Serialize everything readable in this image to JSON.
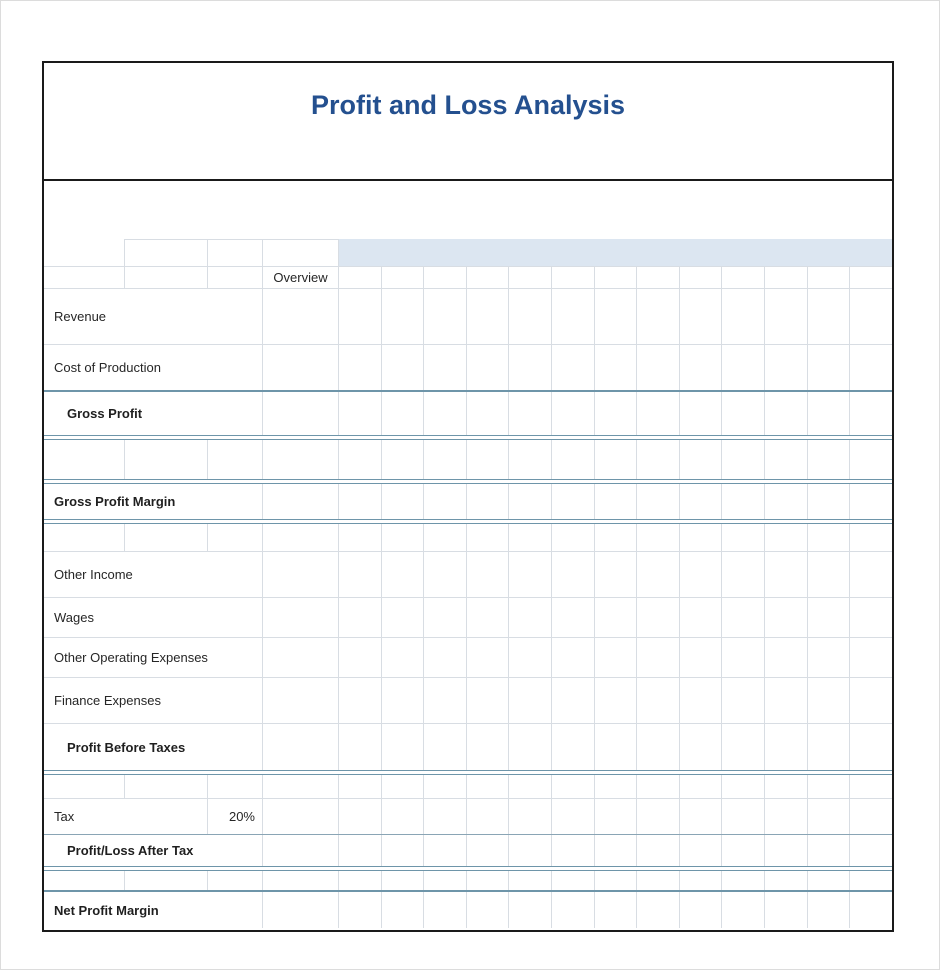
{
  "title": "Profit and Loss Analysis",
  "sheet": {
    "overview_header": "Overview",
    "rows": {
      "revenue": {
        "label": "Revenue"
      },
      "cost_of_production": {
        "label": "Cost of Production"
      },
      "gross_profit": {
        "label": "Gross Profit"
      },
      "gross_profit_margin": {
        "label": "Gross Profit Margin"
      },
      "other_income": {
        "label": "Other Income"
      },
      "wages": {
        "label": "Wages"
      },
      "other_operating_expenses": {
        "label": "Other Operating Expenses"
      },
      "finance_expenses": {
        "label": "Finance Expenses"
      },
      "profit_before_taxes": {
        "label": "Profit Before Taxes"
      },
      "tax": {
        "label": "Tax",
        "rate": "20%"
      },
      "profit_loss_after_tax": {
        "label": "Profit/Loss After Tax"
      },
      "net_profit_margin": {
        "label": "Net Profit Margin"
      }
    }
  },
  "colors": {
    "accent": "#24508F",
    "band": "#DCE6F1",
    "teal": "#6E95A9",
    "grid": "#D8DDE3",
    "frame": "#1A1A1A"
  }
}
